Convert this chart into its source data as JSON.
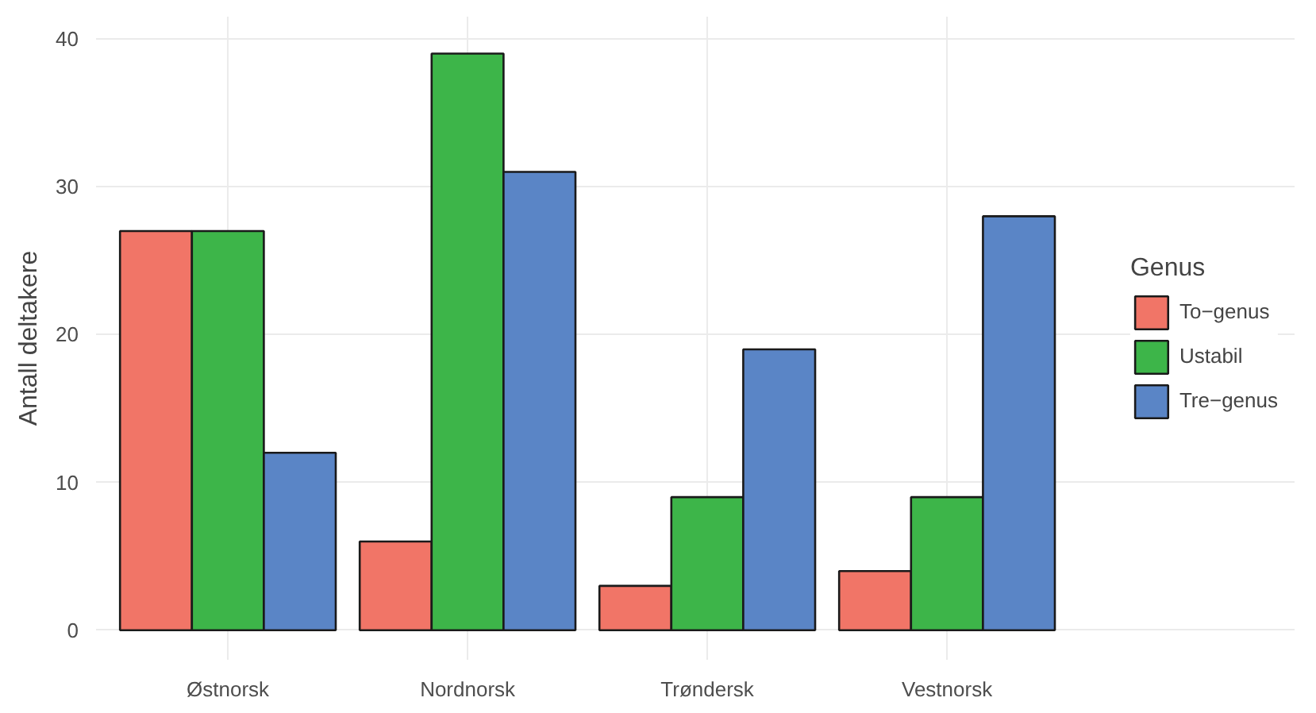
{
  "chart_data": {
    "type": "bar",
    "ylabel": "Antall deltakere",
    "legend_title": "Genus",
    "categories": [
      "Østnorsk",
      "Nordnorsk",
      "Trøndersk",
      "Vestnorsk"
    ],
    "series": [
      {
        "name": "To−genus",
        "color": "#f17567",
        "values": [
          27,
          6,
          3,
          4
        ]
      },
      {
        "name": "Ustabil",
        "color": "#3db549",
        "values": [
          27,
          39,
          9,
          9
        ]
      },
      {
        "name": "Tre−genus",
        "color": "#5a85c6",
        "values": [
          12,
          31,
          19,
          28
        ]
      }
    ],
    "ylim": [
      -2,
      41.5
    ],
    "yticks": [
      0,
      10,
      20,
      30,
      40
    ],
    "grid": true,
    "legend": "right"
  }
}
